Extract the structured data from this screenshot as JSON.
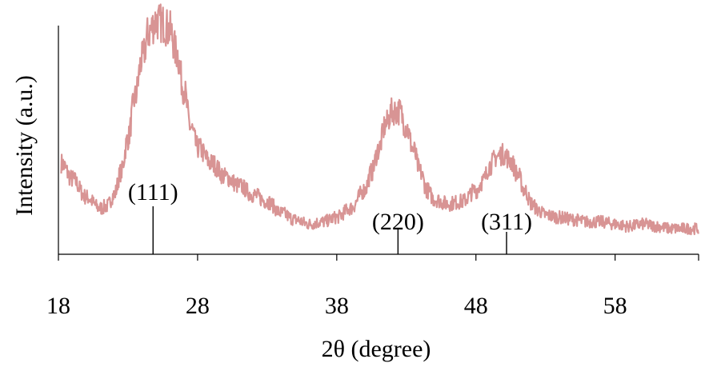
{
  "chart_data": {
    "type": "line",
    "title": "",
    "xlabel": "2θ (degree)",
    "ylabel": "Intensity (a.u.)",
    "xlim": [
      18,
      64
    ],
    "ylim": [
      0,
      100
    ],
    "xticks": [
      "18",
      "28",
      "38",
      "48",
      "58"
    ],
    "xtick_values": [
      18,
      28,
      38,
      48,
      58
    ],
    "grid": false,
    "legend": "none",
    "series_color": "#d89494",
    "series": [
      {
        "x": [
          18.2,
          19.0,
          20.0,
          21.0,
          21.5,
          22.0,
          22.5,
          23.0,
          23.5,
          24.0,
          24.5,
          25.0,
          25.5,
          26.0,
          26.5,
          27.0,
          27.5,
          28.0,
          29.0,
          30.0,
          31.0,
          32.0,
          33.0,
          34.0,
          35.0,
          36.0,
          37.0,
          38.0,
          39.0,
          40.0,
          40.5,
          41.0,
          41.5,
          42.0,
          42.5,
          43.0,
          43.5,
          44.0,
          44.5,
          45.0,
          46.0,
          47.0,
          48.0,
          48.5,
          49.0,
          49.5,
          50.0,
          50.5,
          51.0,
          51.5,
          52.0,
          52.5,
          53.0,
          54.0,
          55.0,
          56.0,
          57.0,
          58.0,
          59.0,
          60.0,
          61.0,
          62.0,
          63.0,
          64.0
        ],
        "y": [
          34,
          27,
          19,
          14,
          15,
          20,
          30,
          45,
          63,
          80,
          92,
          97,
          96,
          93,
          83,
          67,
          50,
          41,
          34,
          28,
          24,
          20,
          17,
          12,
          9,
          7,
          8,
          10,
          14,
          22,
          30,
          40,
          51,
          57,
          57,
          50,
          40,
          30,
          22,
          18,
          16,
          17,
          22,
          26,
          33,
          37,
          38,
          35,
          29,
          22,
          16,
          13,
          11,
          10,
          9,
          8,
          8,
          7,
          6,
          7,
          6,
          5,
          5,
          5
        ]
      }
    ],
    "annotations": [
      {
        "text": "(111)",
        "x": 24.8
      },
      {
        "text": "(220)",
        "x": 42.4
      },
      {
        "text": "(311)",
        "x": 50.2
      }
    ]
  }
}
